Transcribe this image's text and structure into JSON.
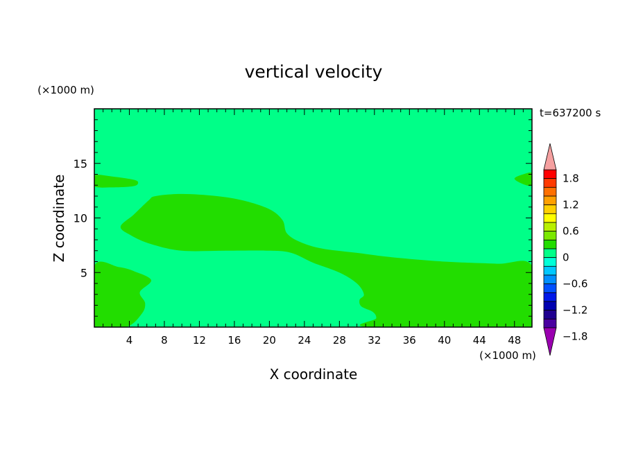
{
  "chart_data": {
    "type": "contour",
    "title": "vertical velocity",
    "xlabel": "X coordinate",
    "ylabel": "Z coordinate",
    "x_unit": "(×1000 m)",
    "y_unit": "(×1000 m)",
    "time_label": "t=637200 s",
    "xlim": [
      0,
      50
    ],
    "ylim": [
      0,
      20
    ],
    "x_ticks": [
      4,
      8,
      12,
      16,
      20,
      24,
      28,
      32,
      36,
      40,
      44,
      48
    ],
    "y_ticks": [
      5,
      10,
      15
    ],
    "background_level_color": "#00ff88",
    "regions": [
      {
        "level": "0 to 0.2",
        "color": "#22dd00",
        "polygon": [
          [
            0,
            0
          ],
          [
            3.6,
            0
          ],
          [
            5.4,
            1.2
          ],
          [
            5.8,
            2.2
          ],
          [
            5.2,
            3.2
          ],
          [
            6.5,
            4.3
          ],
          [
            4.6,
            5.1
          ],
          [
            2.8,
            5.5
          ],
          [
            0,
            5.6
          ]
        ]
      },
      {
        "level": "0 to 0.2",
        "color": "#22dd00",
        "polygon": [
          [
            3,
            9.2
          ],
          [
            4.5,
            10.3
          ],
          [
            6.2,
            11.6
          ],
          [
            7,
            12
          ],
          [
            10,
            12.2
          ],
          [
            14,
            12
          ],
          [
            17,
            11.6
          ],
          [
            20,
            10.8
          ],
          [
            21.5,
            9.8
          ],
          [
            22,
            8.6
          ],
          [
            23.5,
            7.8
          ],
          [
            26,
            7.2
          ],
          [
            30,
            6.8
          ],
          [
            34,
            6.4
          ],
          [
            40,
            6
          ],
          [
            46,
            5.8
          ],
          [
            50,
            5.6
          ],
          [
            50,
            0
          ],
          [
            31.5,
            0
          ],
          [
            32.2,
            0.8
          ],
          [
            31.8,
            1.4
          ],
          [
            30.5,
            1.9
          ],
          [
            30.3,
            2.5
          ],
          [
            30.8,
            3
          ],
          [
            30,
            4
          ],
          [
            28,
            5
          ],
          [
            25,
            5.9
          ],
          [
            22.5,
            6.8
          ],
          [
            20,
            7
          ],
          [
            15,
            7
          ],
          [
            10,
            7
          ],
          [
            6.5,
            7.6
          ],
          [
            4.2,
            8.4
          ]
        ]
      },
      {
        "level": "0 to 0.2",
        "color": "#22dd00",
        "polygon": [
          [
            0,
            13.9
          ],
          [
            2,
            13.8
          ],
          [
            4.5,
            13.5
          ],
          [
            5,
            13.2
          ],
          [
            4.4,
            12.9
          ],
          [
            2,
            12.8
          ],
          [
            0,
            12.9
          ]
        ]
      },
      {
        "level": "0 to 0.2",
        "color": "#22dd00",
        "polygon": [
          [
            50,
            14.1
          ],
          [
            49,
            14
          ],
          [
            48,
            13.6
          ],
          [
            49,
            13.1
          ],
          [
            50,
            13
          ]
        ]
      }
    ],
    "colorbar": {
      "labels": [
        "1.8",
        "1.2",
        "0.6",
        "0",
        "−0.6",
        "−1.2",
        "−1.8"
      ],
      "over_color": "#f5a0a0",
      "under_color": "#9a00b0",
      "colors_top_to_bottom": [
        "#ff0000",
        "#ff3a00",
        "#ff7000",
        "#ffa000",
        "#ffd000",
        "#ffff00",
        "#b8f000",
        "#7be800",
        "#22dd00",
        "#00ff88",
        "#00ffd8",
        "#00c8ff",
        "#0090ff",
        "#0050ff",
        "#0018e8",
        "#0000b0",
        "#200090",
        "#4a00a0"
      ]
    }
  }
}
